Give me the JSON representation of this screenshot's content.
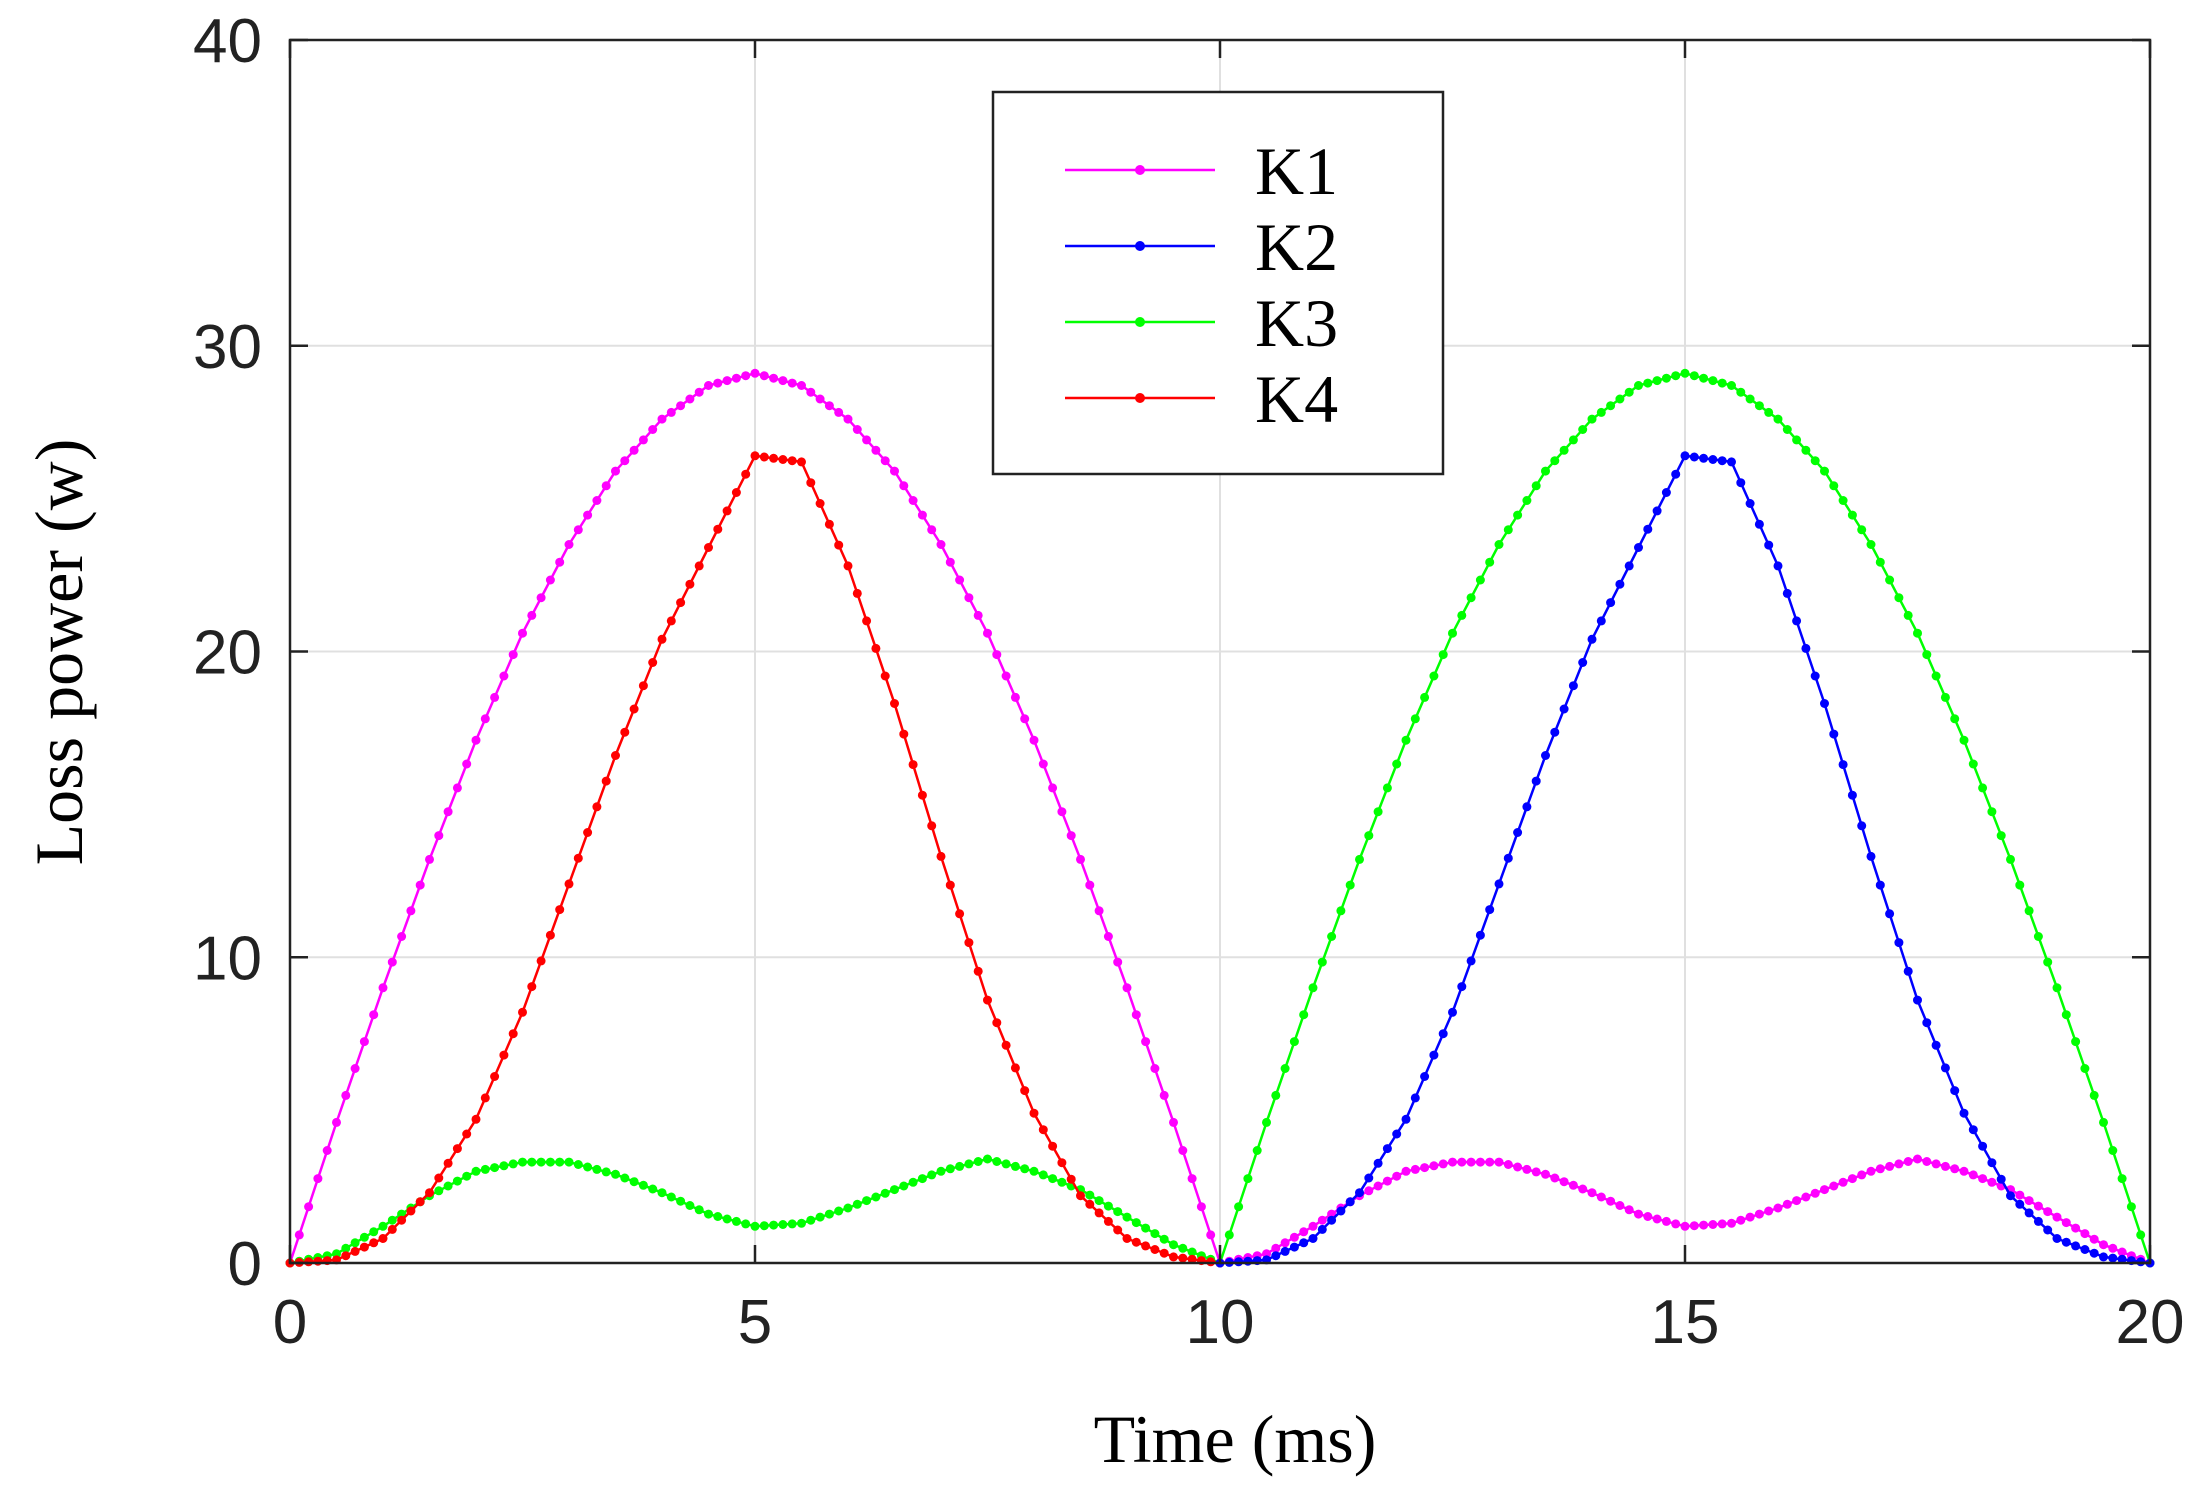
{
  "chart_data": {
    "type": "line",
    "title": "",
    "xlabel": "Time (ms)",
    "ylabel": "Loss power (w)",
    "xlim": [
      0,
      20
    ],
    "ylim": [
      0,
      40
    ],
    "xticks": [
      0,
      5,
      10,
      15,
      20
    ],
    "yticks": [
      0,
      10,
      20,
      30,
      40
    ],
    "xtick_labels": [
      "0",
      "5",
      "10",
      "15",
      "20"
    ],
    "ytick_labels": [
      "0",
      "10",
      "20",
      "30",
      "40"
    ],
    "grid": true,
    "legend": {
      "position": "top-center"
    },
    "series": [
      {
        "name": "K1",
        "color": "#ff00ff",
        "points": [
          [
            0,
            0
          ],
          [
            0.5,
            4.6
          ],
          [
            1,
            9.0
          ],
          [
            1.5,
            13.2
          ],
          [
            2,
            17.1
          ],
          [
            2.5,
            20.6
          ],
          [
            3,
            23.5
          ],
          [
            3.5,
            25.9
          ],
          [
            4,
            27.6
          ],
          [
            4.5,
            28.7
          ],
          [
            5,
            29.1
          ],
          [
            5.5,
            28.7
          ],
          [
            6,
            27.6
          ],
          [
            6.5,
            25.9
          ],
          [
            7,
            23.5
          ],
          [
            7.5,
            20.6
          ],
          [
            8,
            17.1
          ],
          [
            8.5,
            13.2
          ],
          [
            9,
            9.0
          ],
          [
            9.5,
            4.6
          ],
          [
            10,
            0
          ],
          [
            10.5,
            0.3
          ],
          [
            11,
            1.2
          ],
          [
            11.5,
            2.2
          ],
          [
            12,
            3.0
          ],
          [
            12.5,
            3.3
          ],
          [
            13,
            3.3
          ],
          [
            13.5,
            2.9
          ],
          [
            14,
            2.3
          ],
          [
            14.5,
            1.6
          ],
          [
            15,
            1.2
          ],
          [
            15.5,
            1.3
          ],
          [
            16,
            1.8
          ],
          [
            16.5,
            2.4
          ],
          [
            17,
            3.0
          ],
          [
            17.5,
            3.4
          ],
          [
            18,
            3.0
          ],
          [
            18.5,
            2.4
          ],
          [
            19,
            1.5
          ],
          [
            19.5,
            0.6
          ],
          [
            20,
            0
          ]
        ]
      },
      {
        "name": "K2",
        "color": "#0000ff",
        "points": [
          [
            10,
            0
          ],
          [
            10.5,
            0.1
          ],
          [
            11,
            0.8
          ],
          [
            11.5,
            2.3
          ],
          [
            12,
            4.7
          ],
          [
            12.5,
            8.2
          ],
          [
            13,
            12.4
          ],
          [
            13.5,
            16.6
          ],
          [
            14,
            20.4
          ],
          [
            14.5,
            23.4
          ],
          [
            15,
            26.4
          ],
          [
            15.5,
            26.2
          ],
          [
            16,
            22.8
          ],
          [
            16.5,
            18.3
          ],
          [
            17,
            13.3
          ],
          [
            17.5,
            8.6
          ],
          [
            18,
            4.9
          ],
          [
            18.5,
            2.2
          ],
          [
            19,
            0.8
          ],
          [
            19.5,
            0.2
          ],
          [
            20,
            0
          ]
        ]
      },
      {
        "name": "K3",
        "color": "#00ff00",
        "points": [
          [
            0,
            0
          ],
          [
            0.5,
            0.3
          ],
          [
            1,
            1.2
          ],
          [
            1.5,
            2.2
          ],
          [
            2,
            3.0
          ],
          [
            2.5,
            3.3
          ],
          [
            3,
            3.3
          ],
          [
            3.5,
            2.9
          ],
          [
            4,
            2.3
          ],
          [
            4.5,
            1.6
          ],
          [
            5,
            1.2
          ],
          [
            5.5,
            1.3
          ],
          [
            6,
            1.8
          ],
          [
            6.5,
            2.4
          ],
          [
            7,
            3.0
          ],
          [
            7.5,
            3.4
          ],
          [
            8,
            3.0
          ],
          [
            8.5,
            2.4
          ],
          [
            9,
            1.5
          ],
          [
            9.5,
            0.6
          ],
          [
            10,
            0
          ],
          [
            10.5,
            4.6
          ],
          [
            11,
            9.0
          ],
          [
            11.5,
            13.2
          ],
          [
            12,
            17.1
          ],
          [
            12.5,
            20.6
          ],
          [
            13,
            23.5
          ],
          [
            13.5,
            25.9
          ],
          [
            14,
            27.6
          ],
          [
            14.5,
            28.7
          ],
          [
            15,
            29.1
          ],
          [
            15.5,
            28.7
          ],
          [
            16,
            27.6
          ],
          [
            16.5,
            25.9
          ],
          [
            17,
            23.5
          ],
          [
            17.5,
            20.6
          ],
          [
            18,
            17.1
          ],
          [
            18.5,
            13.2
          ],
          [
            19,
            9.0
          ],
          [
            19.5,
            4.6
          ],
          [
            20,
            0
          ]
        ]
      },
      {
        "name": "K4",
        "color": "#ff0000",
        "points": [
          [
            0,
            0
          ],
          [
            0.5,
            0.1
          ],
          [
            1,
            0.8
          ],
          [
            1.5,
            2.3
          ],
          [
            2,
            4.7
          ],
          [
            2.5,
            8.2
          ],
          [
            3,
            12.4
          ],
          [
            3.5,
            16.6
          ],
          [
            4,
            20.4
          ],
          [
            4.5,
            23.4
          ],
          [
            5,
            26.4
          ],
          [
            5.5,
            26.2
          ],
          [
            6,
            22.8
          ],
          [
            6.5,
            18.3
          ],
          [
            7,
            13.3
          ],
          [
            7.5,
            8.6
          ],
          [
            8,
            4.9
          ],
          [
            8.5,
            2.2
          ],
          [
            9,
            0.8
          ],
          [
            9.5,
            0.2
          ],
          [
            10,
            0
          ]
        ]
      }
    ]
  }
}
